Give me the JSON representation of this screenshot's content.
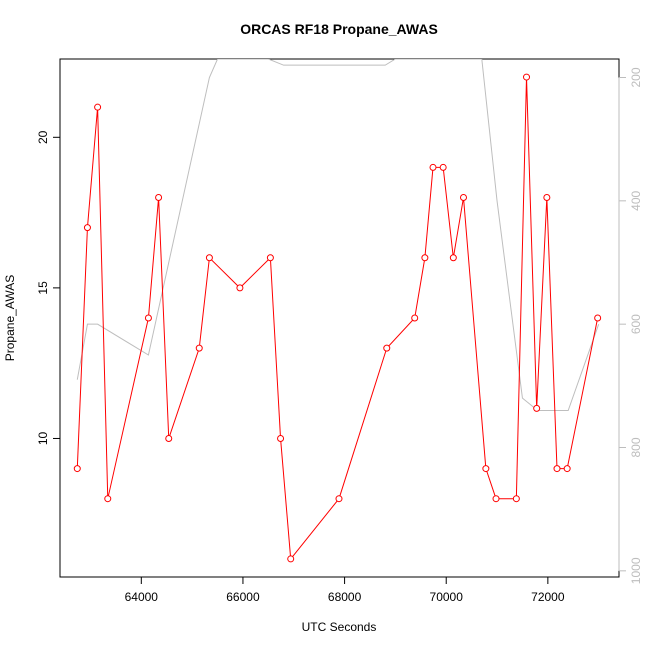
{
  "chart_data": {
    "type": "line",
    "title": "ORCAS RF18 Propane_AWAS",
    "xlabel": "UTC Seconds",
    "ylabel": "Propane_AWAS",
    "xlim": [
      62400,
      73400
    ],
    "ylim": [
      5.4,
      22.6
    ],
    "x_ticks": [
      64000,
      66000,
      68000,
      70000,
      72000
    ],
    "y_ticks": [
      10,
      15,
      20
    ],
    "y2_ticks": [
      200,
      400,
      600,
      800,
      1000
    ],
    "y2lim_top_to_bottom": [
      170,
      1010
    ],
    "colors": {
      "primary": "#ff0000",
      "secondary": "#bebebe",
      "axis": "#000000",
      "secondary_axis": "#bdbdbd"
    },
    "grid": false,
    "legend": "none",
    "series": [
      {
        "axis": "left",
        "markers": "open-circle",
        "x": [
          62740,
          62940,
          63140,
          63340,
          64140,
          64340,
          64540,
          65140,
          65340,
          65940,
          66540,
          66740,
          66940,
          67890,
          68830,
          69380,
          69580,
          69740,
          69940,
          70140,
          70340,
          70780,
          70980,
          71380,
          71580,
          71780,
          71980,
          72180,
          72380,
          72980
        ],
        "values": [
          9,
          17,
          21,
          8,
          14,
          18,
          10,
          13,
          16,
          15,
          16,
          10,
          6,
          8,
          13,
          14,
          16,
          19,
          19,
          16,
          18,
          9,
          8,
          8,
          22,
          11,
          18,
          9,
          9,
          14
        ]
      },
      {
        "axis": "right",
        "markers": "none",
        "x": [
          62740,
          62940,
          63140,
          64140,
          65340,
          65500,
          66500,
          66800,
          68800,
          69000,
          70700,
          71000,
          71500,
          71800,
          72400,
          73000
        ],
        "values": [
          690,
          600,
          600,
          650,
          200,
          170,
          170,
          180,
          180,
          170,
          170,
          400,
          720,
          740,
          740,
          600
        ]
      }
    ]
  }
}
